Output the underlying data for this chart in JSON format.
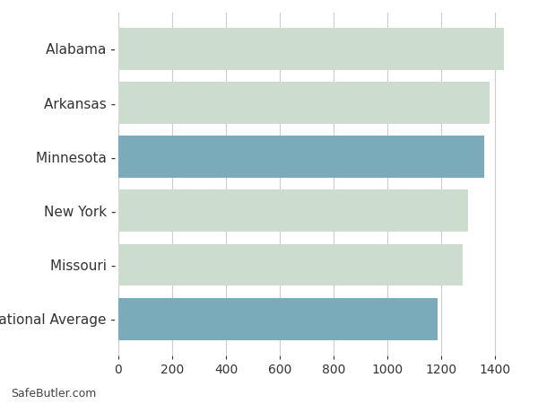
{
  "categories": [
    "Alabama",
    "Arkansas",
    "Minnesota",
    "New York",
    "Missouri",
    "National Average"
  ],
  "values": [
    1432,
    1381,
    1359,
    1301,
    1280,
    1185
  ],
  "bar_colors": [
    "#ccddd0",
    "#ccddd0",
    "#7aabba",
    "#ccddd0",
    "#ccddd0",
    "#7aabba"
  ],
  "background_color": "#ffffff",
  "grid_color": "#cccccc",
  "xlim": [
    0,
    1500
  ],
  "xticks": [
    0,
    200,
    400,
    600,
    800,
    1000,
    1200,
    1400
  ],
  "tick_fontsize": 10,
  "label_fontsize": 11,
  "footer_text": "SafeButler.com",
  "bar_height": 0.78
}
